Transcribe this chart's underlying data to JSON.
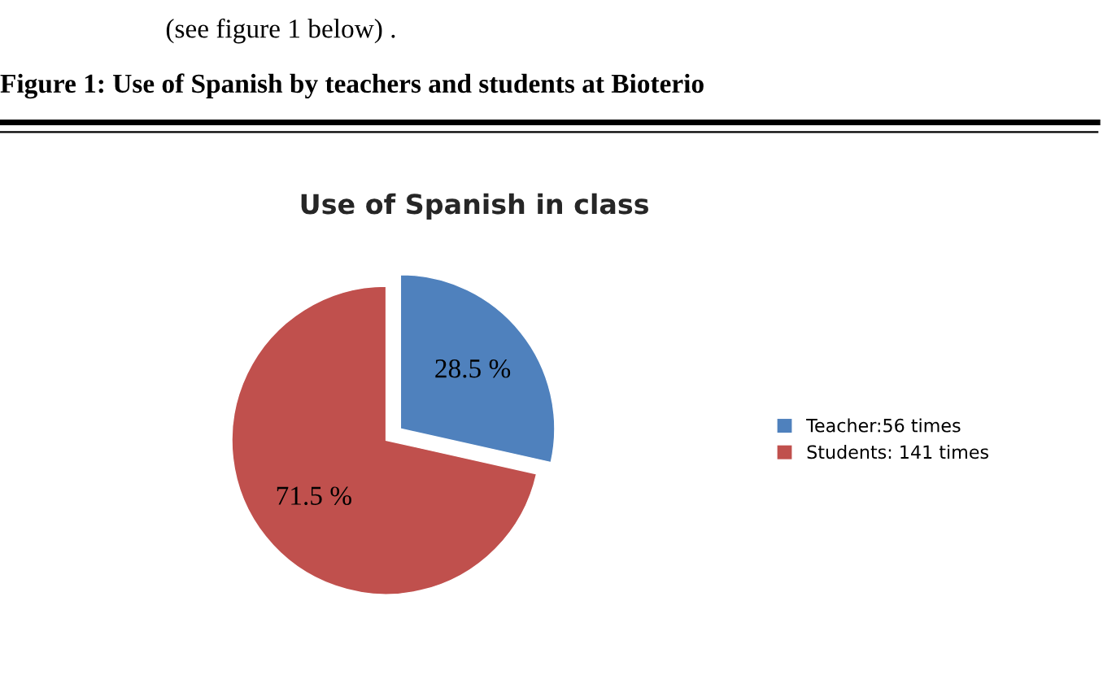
{
  "chart_data": {
    "type": "pie",
    "title": "Figure 1: Use of Spanish by teachers and students at Bioterio",
    "subtitle": "Use of Spanish in class",
    "annotations": [
      "(see figure 1 below) ."
    ],
    "categories": [
      "Teacher:56 times",
      "Students: 141 times"
    ],
    "values": [
      28.5,
      71.5
    ],
    "colors": [
      "#4f81bd",
      "#c0504d"
    ],
    "value_labels": [
      "28.5 %",
      "71.5 %"
    ],
    "legend": "right"
  }
}
